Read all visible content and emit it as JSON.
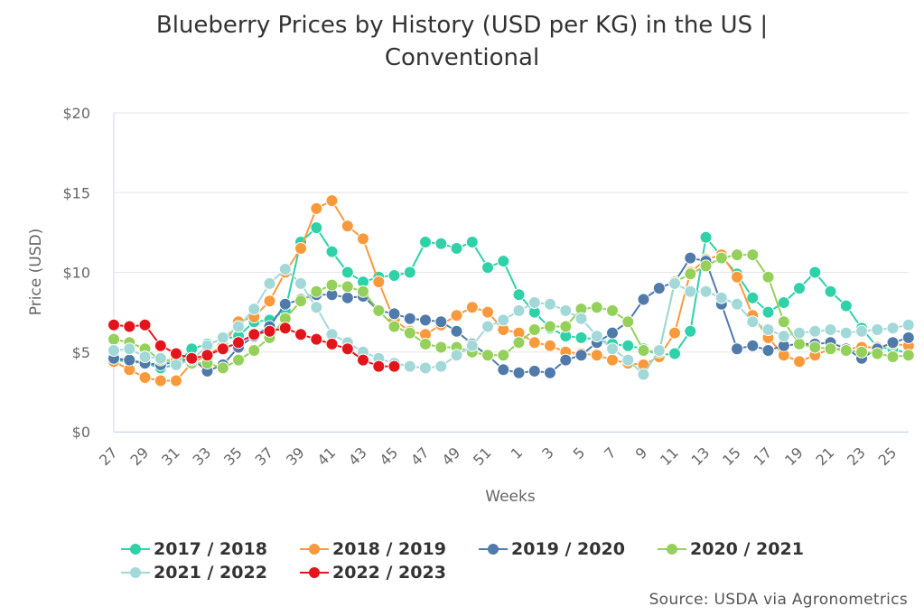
{
  "chart_data": {
    "type": "line",
    "title_line1": "Blueberry Prices by History (USD per KG) in the US |",
    "title_line2": "Conventional",
    "xlabel": "Weeks",
    "ylabel": "Price (USD)",
    "ylim": [
      0,
      20
    ],
    "yticks": [
      "$0",
      "$5",
      "$10",
      "$15",
      "$20"
    ],
    "grid": true,
    "legend_position": "bottom",
    "source": "Source: USDA via Agronometrics",
    "x": [
      "27",
      "28",
      "29",
      "30",
      "31",
      "32",
      "33",
      "34",
      "35",
      "36",
      "37",
      "38",
      "39",
      "40",
      "41",
      "42",
      "43",
      "44",
      "45",
      "46",
      "47",
      "48",
      "49",
      "50",
      "51",
      "52",
      "1",
      "2",
      "3",
      "4",
      "5",
      "6",
      "7",
      "8",
      "9",
      "10",
      "11",
      "12",
      "13",
      "14",
      "15",
      "16",
      "17",
      "18",
      "19",
      "20",
      "21",
      "22",
      "23",
      "24",
      "25",
      "26"
    ],
    "xtick_labels": [
      "27",
      "29",
      "31",
      "33",
      "35",
      "37",
      "39",
      "41",
      "43",
      "45",
      "47",
      "49",
      "51",
      "1",
      "3",
      "5",
      "7",
      "9",
      "11",
      "13",
      "15",
      "17",
      "19",
      "21",
      "23",
      "25"
    ],
    "series": [
      {
        "name": "2017 / 2018",
        "color": "#2fd1a8",
        "values": [
          4.5,
          4.4,
          4.3,
          4.0,
          4.2,
          5.2,
          5.5,
          5.8,
          6.0,
          6.9,
          7.0,
          7.6,
          11.9,
          12.8,
          11.3,
          10.0,
          9.4,
          9.7,
          9.8,
          10.0,
          11.9,
          11.8,
          11.5,
          11.9,
          10.3,
          10.7,
          8.6,
          7.5,
          6.5,
          6.0,
          5.9,
          5.8,
          5.5,
          5.4,
          5.2,
          4.8,
          4.9,
          6.3,
          12.2,
          11.0,
          9.9,
          8.4,
          7.5,
          8.1,
          9.0,
          10.0,
          8.8,
          7.9,
          6.5,
          5.3,
          5.2,
          4.9
        ]
      },
      {
        "name": "2018 / 2019",
        "color": "#f89a3c",
        "values": [
          4.4,
          3.9,
          3.4,
          3.2,
          3.2,
          4.3,
          4.8,
          5.4,
          6.9,
          7.2,
          8.2,
          10.0,
          11.5,
          14.0,
          14.5,
          12.9,
          12.1,
          9.4,
          7.0,
          6.3,
          6.1,
          6.7,
          7.3,
          7.8,
          7.5,
          6.4,
          6.2,
          5.6,
          5.4,
          5.0,
          4.9,
          4.8,
          4.5,
          4.3,
          4.2,
          4.7,
          6.2,
          10.0,
          10.8,
          11.1,
          9.7,
          7.3,
          5.9,
          4.8,
          4.4,
          4.8,
          5.2,
          5.2,
          5.3,
          5.3,
          5.5,
          5.4
        ]
      },
      {
        "name": "2019 / 2020",
        "color": "#4f7aaa",
        "values": [
          4.6,
          4.5,
          4.3,
          4.2,
          4.4,
          4.6,
          3.8,
          4.2,
          5.3,
          6.0,
          6.6,
          8.0,
          8.3,
          8.6,
          8.6,
          8.4,
          8.5,
          7.6,
          7.4,
          7.1,
          7.0,
          6.9,
          6.3,
          5.5,
          4.8,
          3.9,
          3.7,
          3.8,
          3.7,
          4.5,
          4.8,
          5.6,
          6.2,
          6.9,
          8.3,
          9.0,
          9.4,
          10.9,
          10.7,
          8.0,
          5.2,
          5.4,
          5.1,
          5.4,
          5.5,
          5.5,
          5.6,
          5.2,
          4.6,
          5.2,
          5.6,
          5.9
        ]
      },
      {
        "name": "2020 / 2021",
        "color": "#94d05a",
        "values": [
          5.8,
          5.6,
          5.2,
          4.5,
          4.5,
          4.3,
          4.3,
          4.0,
          4.5,
          5.1,
          5.9,
          7.1,
          8.2,
          8.8,
          9.2,
          9.1,
          8.8,
          7.6,
          6.6,
          6.2,
          5.5,
          5.3,
          5.3,
          5.0,
          4.8,
          4.8,
          5.6,
          6.4,
          6.6,
          6.6,
          7.7,
          7.8,
          7.6,
          6.9,
          5.1,
          5.0,
          9.4,
          9.9,
          10.4,
          10.9,
          11.1,
          11.1,
          9.7,
          6.9,
          5.5,
          5.3,
          5.2,
          5.1,
          5.0,
          4.9,
          4.7,
          4.8
        ]
      },
      {
        "name": "2021 / 2022",
        "color": "#a3d8d8",
        "values": [
          5.1,
          5.2,
          4.7,
          4.6,
          4.2,
          4.5,
          5.4,
          5.9,
          6.6,
          7.7,
          9.3,
          10.2,
          9.3,
          7.8,
          6.1,
          5.6,
          5.0,
          4.6,
          4.3,
          4.1,
          4.0,
          4.1,
          4.8,
          5.4,
          6.6,
          7.0,
          7.6,
          8.1,
          8.0,
          7.6,
          7.1,
          6.0,
          5.2,
          4.5,
          3.6,
          5.1,
          9.3,
          8.8,
          8.8,
          8.4,
          8.0,
          6.9,
          6.4,
          6.0,
          6.2,
          6.3,
          6.4,
          6.2,
          6.3,
          6.4,
          6.5,
          6.7
        ]
      },
      {
        "name": "2022 / 2023",
        "color": "#e3141c",
        "values": [
          6.7,
          6.6,
          6.7,
          5.4,
          4.9,
          4.6,
          4.8,
          5.2,
          5.6,
          6.1,
          6.3,
          6.5,
          6.1,
          5.8,
          5.5,
          5.2,
          4.5,
          4.1,
          4.1,
          null,
          null,
          null,
          null,
          null,
          null,
          null,
          null,
          null,
          null,
          null,
          null,
          null,
          null,
          null,
          null,
          null,
          null,
          null,
          null,
          null,
          null,
          null,
          null,
          null,
          null,
          null,
          null,
          null,
          null,
          null,
          null,
          null
        ]
      }
    ]
  }
}
